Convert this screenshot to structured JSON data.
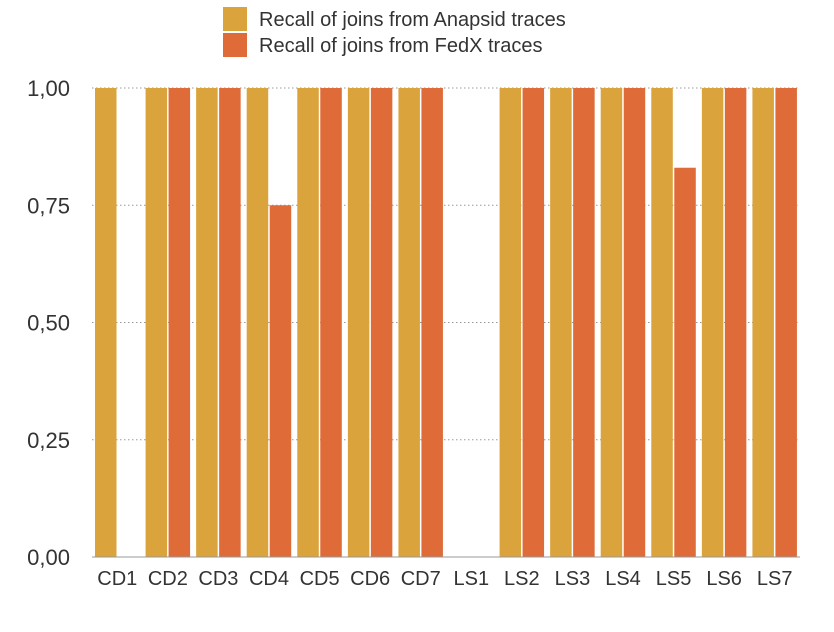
{
  "chart_data": {
    "type": "bar",
    "title": "",
    "xlabel": "",
    "ylabel": "",
    "categories": [
      "CD1",
      "CD2",
      "CD3",
      "CD4",
      "CD5",
      "CD6",
      "CD7",
      "LS1",
      "LS2",
      "LS3",
      "LS4",
      "LS5",
      "LS6",
      "LS7"
    ],
    "series": [
      {
        "name": "Recall of joins from Anapsid traces",
        "color": "#DAA33B",
        "values": [
          1,
          1,
          1,
          1,
          1,
          1,
          1,
          0,
          1,
          1,
          1,
          1,
          1,
          1
        ]
      },
      {
        "name": "Recall of joins from FedX traces",
        "color": "#DE6B38",
        "values": [
          0,
          1,
          1,
          0.75,
          1,
          1,
          1,
          0,
          1,
          1,
          1,
          0.83,
          1,
          1
        ]
      }
    ],
    "ylim": [
      0,
      1
    ],
    "yticks": [
      0,
      0.25,
      0.5,
      0.75,
      1
    ],
    "ytick_labels": [
      "0,00",
      "0,25",
      "0,50",
      "0,75",
      "1,00"
    ],
    "grid": true,
    "legend_position": "top"
  }
}
